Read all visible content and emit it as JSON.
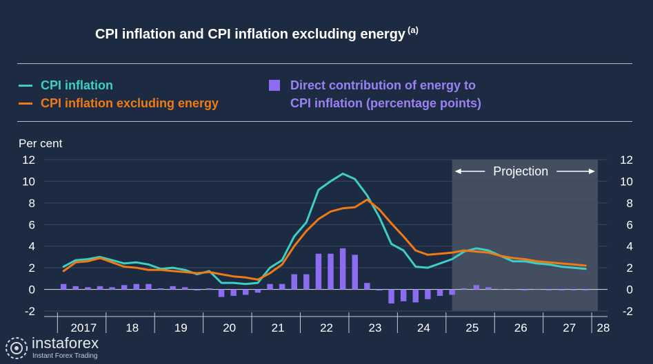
{
  "title": "CPI inflation and CPI inflation excluding energy",
  "title_note": "(a)",
  "legend": {
    "cpi": "CPI inflation",
    "cpi_ex_energy": "CPI inflation excluding energy",
    "energy_line1": "Direct contribution of energy to",
    "energy_line2": "CPI inflation (percentage points)"
  },
  "colors": {
    "background": "#1d2b42",
    "cpi": "#3ecfc4",
    "cpi_ex_energy": "#f07a14",
    "energy": "#8c6cf0",
    "projection_shade": "#4a5566"
  },
  "watermark": {
    "brand": "instaforex",
    "tagline": "Instant Forex Trading"
  },
  "chart_data": {
    "type": "line",
    "ylabel": "Per cent",
    "ylim": [
      -2,
      12
    ],
    "yticks": [
      -2,
      0,
      2,
      4,
      6,
      8,
      10,
      12
    ],
    "xlim": [
      2016.6,
      2028.2
    ],
    "x_tick_labels": [
      "2017",
      "18",
      "19",
      "20",
      "21",
      "22",
      "23",
      "24",
      "25",
      "26",
      "27",
      "28"
    ],
    "x_tick_positions": [
      2017.5,
      2018.5,
      2019.5,
      2020.5,
      2021.5,
      2022.5,
      2023.5,
      2024.5,
      2025.5,
      2026.5,
      2027.5,
      2028.2
    ],
    "projection": {
      "label": "Projection",
      "start": 2025.0,
      "end": 2028.0
    },
    "series": [
      {
        "name": "CPI inflation",
        "kind": "line",
        "x": [
          2017.0,
          2017.25,
          2017.5,
          2017.75,
          2018.0,
          2018.25,
          2018.5,
          2018.75,
          2019.0,
          2019.25,
          2019.5,
          2019.75,
          2020.0,
          2020.25,
          2020.5,
          2020.75,
          2021.0,
          2021.25,
          2021.5,
          2021.75,
          2022.0,
          2022.25,
          2022.5,
          2022.75,
          2023.0,
          2023.25,
          2023.5,
          2023.75,
          2024.0,
          2024.25,
          2024.5,
          2024.75,
          2025.0,
          2025.25,
          2025.5,
          2025.75,
          2026.0,
          2026.25,
          2026.5,
          2026.75,
          2027.0,
          2027.25,
          2027.5,
          2027.75
        ],
        "values": [
          2.1,
          2.7,
          2.8,
          3.0,
          2.7,
          2.4,
          2.5,
          2.3,
          1.9,
          2.0,
          1.8,
          1.4,
          1.7,
          0.6,
          0.6,
          0.5,
          0.6,
          2.0,
          2.7,
          4.9,
          6.2,
          9.2,
          10.0,
          10.7,
          10.2,
          8.7,
          6.7,
          4.2,
          3.6,
          2.1,
          2.0,
          2.4,
          2.8,
          3.5,
          3.8,
          3.6,
          3.1,
          2.6,
          2.6,
          2.4,
          2.3,
          2.1,
          2.0,
          1.9
        ]
      },
      {
        "name": "CPI inflation excluding energy",
        "kind": "line",
        "x": [
          2017.0,
          2017.25,
          2017.5,
          2017.75,
          2018.0,
          2018.25,
          2018.5,
          2018.75,
          2019.0,
          2019.25,
          2019.5,
          2019.75,
          2020.0,
          2020.25,
          2020.5,
          2020.75,
          2021.0,
          2021.25,
          2021.5,
          2021.75,
          2022.0,
          2022.25,
          2022.5,
          2022.75,
          2023.0,
          2023.25,
          2023.5,
          2023.75,
          2024.0,
          2024.25,
          2024.5,
          2024.75,
          2025.0,
          2025.25,
          2025.5,
          2025.75,
          2026.0,
          2026.25,
          2026.5,
          2026.75,
          2027.0,
          2027.25,
          2027.5,
          2027.75
        ],
        "values": [
          1.7,
          2.5,
          2.6,
          2.9,
          2.5,
          2.1,
          2.0,
          1.8,
          1.8,
          1.7,
          1.6,
          1.5,
          1.6,
          1.4,
          1.2,
          1.1,
          0.9,
          1.5,
          2.3,
          4.0,
          5.4,
          6.5,
          7.2,
          7.5,
          7.6,
          8.3,
          7.4,
          6.1,
          4.9,
          3.6,
          3.2,
          3.3,
          3.4,
          3.6,
          3.5,
          3.4,
          3.1,
          2.9,
          2.8,
          2.6,
          2.5,
          2.4,
          2.3,
          2.2
        ]
      },
      {
        "name": "Direct contribution of energy to CPI inflation (percentage points)",
        "kind": "bar",
        "x": [
          2017.0,
          2017.25,
          2017.5,
          2017.75,
          2018.0,
          2018.25,
          2018.5,
          2018.75,
          2019.0,
          2019.25,
          2019.5,
          2019.75,
          2020.0,
          2020.25,
          2020.5,
          2020.75,
          2021.0,
          2021.25,
          2021.5,
          2021.75,
          2022.0,
          2022.25,
          2022.5,
          2022.75,
          2023.0,
          2023.25,
          2023.5,
          2023.75,
          2024.0,
          2024.25,
          2024.5,
          2024.75,
          2025.0,
          2025.25,
          2025.5,
          2025.75,
          2026.0,
          2026.25,
          2026.5,
          2026.75,
          2027.0,
          2027.25,
          2027.5,
          2027.75
        ],
        "values": [
          0.5,
          0.3,
          0.2,
          0.3,
          0.2,
          0.4,
          0.5,
          0.5,
          0.1,
          0.3,
          0.2,
          -0.1,
          0.1,
          -0.7,
          -0.6,
          -0.5,
          -0.3,
          0.5,
          0.5,
          1.4,
          1.4,
          3.3,
          3.3,
          3.8,
          3.2,
          0.6,
          -0.1,
          -1.3,
          -1.1,
          -1.2,
          -0.9,
          -0.6,
          -0.5,
          0.1,
          0.4,
          0.2,
          0.0,
          0.0,
          -0.1,
          0.0,
          -0.1,
          -0.1,
          -0.1,
          -0.1
        ]
      }
    ]
  }
}
